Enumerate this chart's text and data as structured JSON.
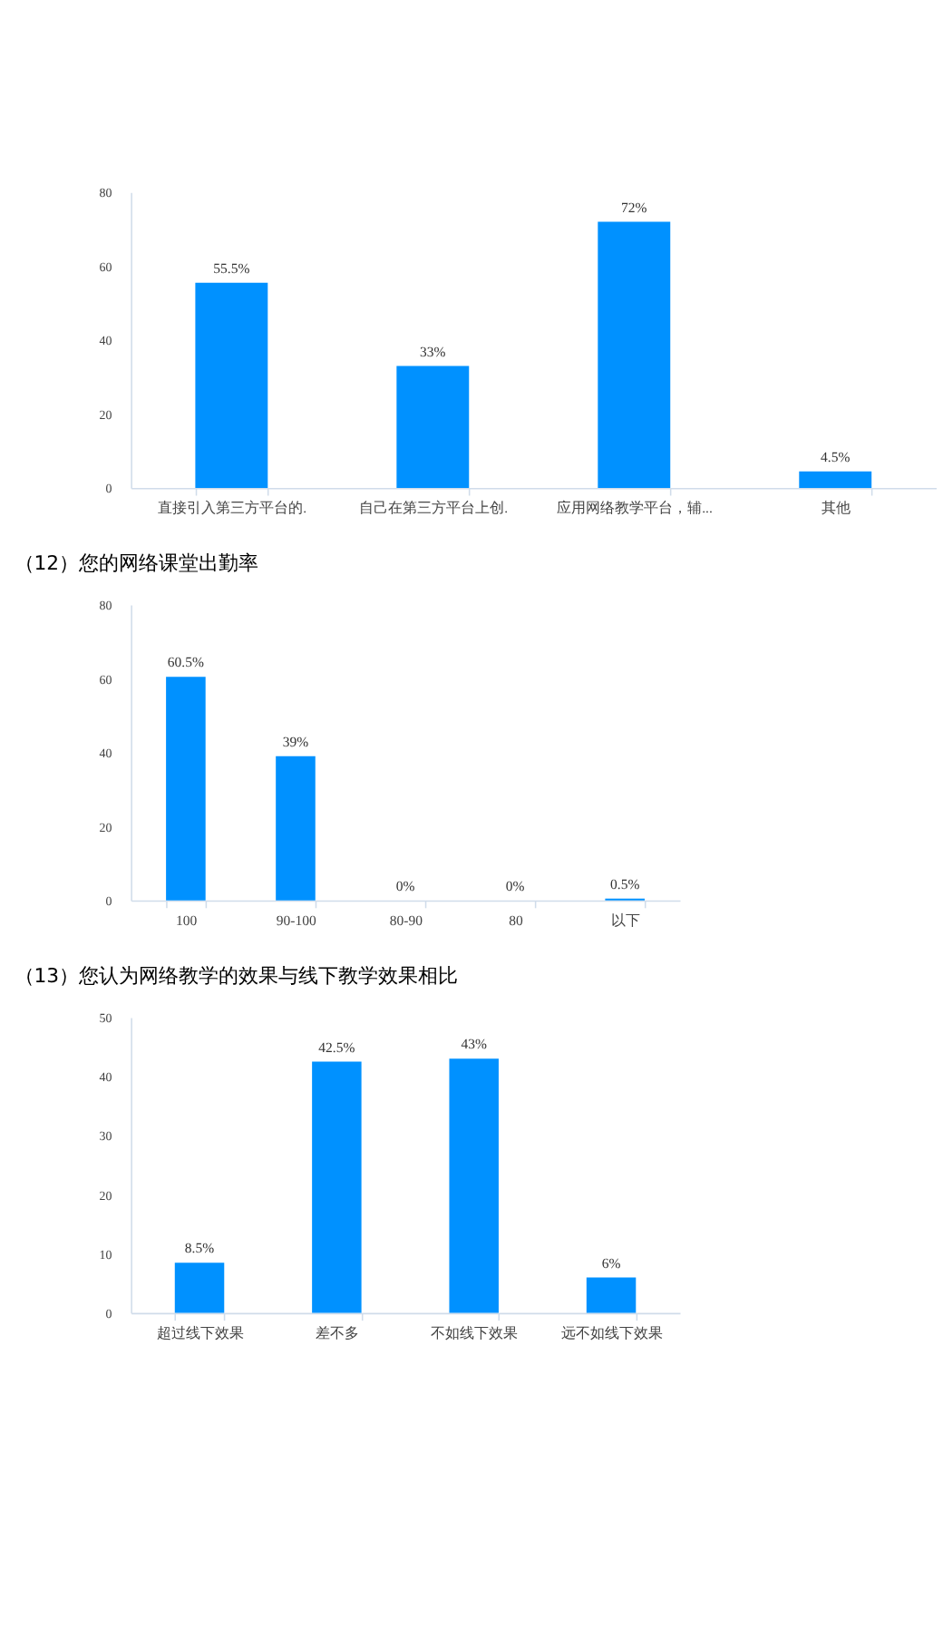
{
  "chart_data": [
    {
      "type": "bar",
      "categories": [
        "直接引入第三方平台的.",
        "自己在第三方平台上创.",
        "应用网络教学平台，辅...",
        "其他"
      ],
      "values": [
        55.5,
        33,
        72,
        4.5
      ],
      "value_labels": [
        "55.5%",
        "33%",
        "72%",
        "4.5%"
      ],
      "color": "#0091ff",
      "ylim": [
        0,
        80
      ],
      "yticks": [
        0,
        20,
        40,
        60,
        80
      ],
      "grid": false
    },
    {
      "type": "bar",
      "title": "（12）您的网络课堂出勤率",
      "categories": [
        "100",
        "90-100",
        "80-90",
        "80",
        "以下"
      ],
      "values": [
        60.5,
        39,
        0,
        0,
        0.5
      ],
      "value_labels": [
        "60.5%",
        "39%",
        "0%",
        "0%",
        "0.5%"
      ],
      "color": "#0091ff",
      "ylim": [
        0,
        80
      ],
      "yticks": [
        0,
        20,
        40,
        60,
        80
      ],
      "grid": false
    },
    {
      "type": "bar",
      "title": "（13）您认为网络教学的效果与线下教学效果相比",
      "categories": [
        "超过线下效果",
        "差不多",
        "不如线下效果",
        "远不如线下效果"
      ],
      "values": [
        8.5,
        42.5,
        43,
        6
      ],
      "value_labels": [
        "8.5%",
        "42.5%",
        "43%",
        "6%"
      ],
      "color": "#0091ff",
      "ylim": [
        0,
        50
      ],
      "yticks": [
        0,
        10,
        20,
        30,
        40,
        50
      ],
      "grid": false
    }
  ]
}
